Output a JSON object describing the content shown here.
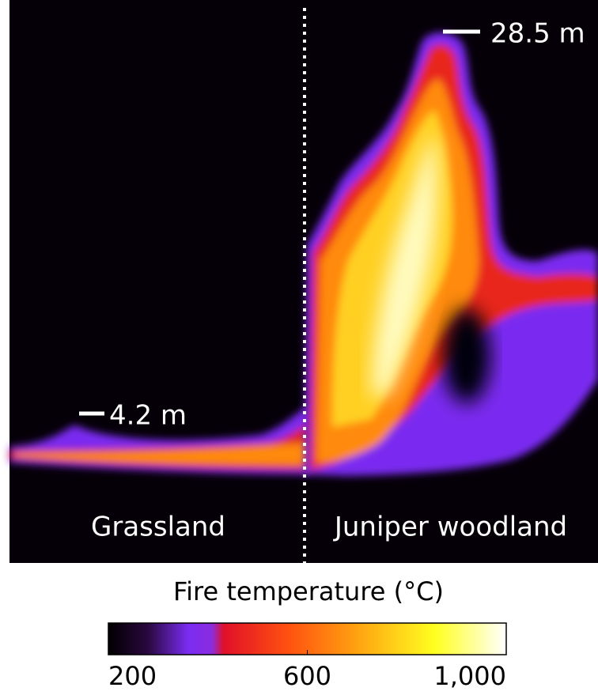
{
  "labels": {
    "top_height": "28.5 m",
    "grass_height": "4.2 m",
    "left_region": "Grassland",
    "right_region": "Juniper woodland"
  },
  "colorbar": {
    "title": "Fire temperature (°C)",
    "range": [
      200,
      1000
    ],
    "ticks": [
      200,
      600,
      {
        "value": 1000,
        "label": "1,000"
      }
    ]
  }
}
